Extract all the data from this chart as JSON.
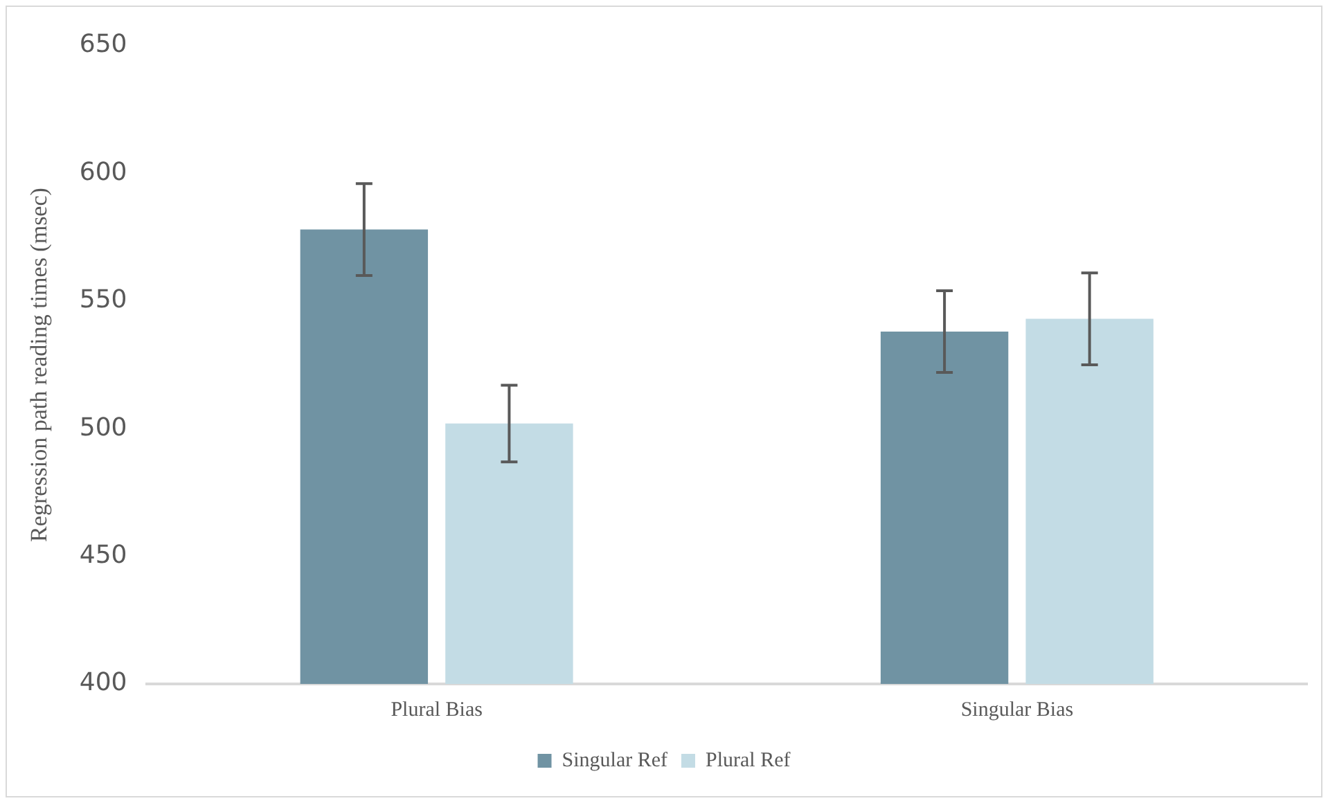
{
  "chart_data": {
    "type": "bar",
    "ylabel": "Regression path reading times (msec)",
    "categories": [
      "Plural Bias",
      "Singular Bias"
    ],
    "series": [
      {
        "name": "Singular Ref",
        "color": "#7093a3",
        "values": [
          578,
          538
        ],
        "errors": [
          18,
          16
        ]
      },
      {
        "name": "Plural Ref",
        "color": "#c3dce5",
        "values": [
          502,
          543
        ],
        "errors": [
          15,
          18
        ]
      }
    ],
    "ylim": [
      400,
      650
    ],
    "yticks": [
      400,
      450,
      500,
      550,
      600,
      650
    ],
    "grid": false,
    "legend": "bottom"
  }
}
